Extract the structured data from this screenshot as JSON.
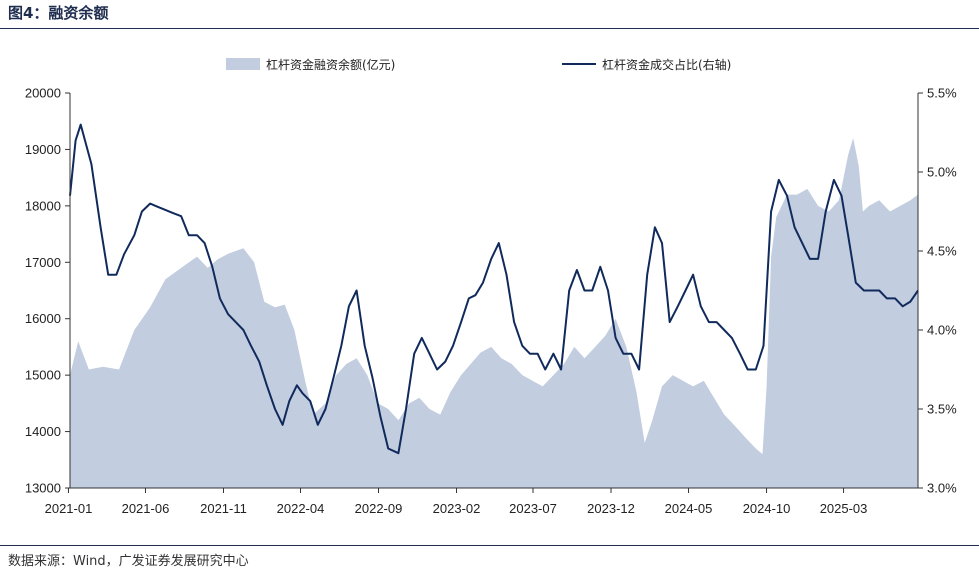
{
  "header": {
    "title": "图4：融资余额"
  },
  "footer": {
    "source": "数据来源：Wind，广发证券发展研究中心"
  },
  "colors": {
    "area": "#c2cde0",
    "line": "#102a5c",
    "axis": "#333333"
  },
  "chart_data": {
    "type": "area",
    "title": "图4：融资余额",
    "legend": {
      "placement": "top",
      "items": [
        "杠杆资金融资余额(亿元)",
        "杠杆资金成交占比(右轴)"
      ]
    },
    "x_ticks": [
      "2021-01",
      "2021-06",
      "2021-11",
      "2022-04",
      "2022-09",
      "2023-02",
      "2023-07",
      "2023-12",
      "2024-05",
      "2024-10",
      "2025-03"
    ],
    "y_left": {
      "range": [
        13000,
        20000
      ],
      "ticks": [
        "13000",
        "14000",
        "15000",
        "16000",
        "17000",
        "18000",
        "19000",
        "20000"
      ]
    },
    "y_right": {
      "range": [
        0.03,
        0.055
      ],
      "ticks": [
        "3.0%",
        "3.5%",
        "4.0%",
        "4.5%",
        "5.0%",
        "5.5%"
      ]
    },
    "grid": false,
    "series": [
      {
        "name": "杠杆资金融资余额(亿元)",
        "kind": "area",
        "axis": "left",
        "x": [
          "2021-01-04",
          "2021-01-20",
          "2021-02-10",
          "2021-03-10",
          "2021-04-10",
          "2021-05-10",
          "2021-06-10",
          "2021-07-10",
          "2021-08-10",
          "2021-09-10",
          "2021-10-01",
          "2021-10-20",
          "2021-11-10",
          "2021-12-10",
          "2021-12-31",
          "2022-01-20",
          "2022-02-10",
          "2022-03-01",
          "2022-03-20",
          "2022-04-10",
          "2022-04-26",
          "2022-05-20",
          "2022-06-10",
          "2022-06-30",
          "2022-07-20",
          "2022-08-10",
          "2022-08-31",
          "2022-09-20",
          "2022-10-10",
          "2022-10-31",
          "2022-11-20",
          "2022-12-10",
          "2022-12-31",
          "2023-01-20",
          "2023-02-10",
          "2023-03-01",
          "2023-03-20",
          "2023-04-10",
          "2023-04-30",
          "2023-05-20",
          "2023-06-10",
          "2023-06-30",
          "2023-07-20",
          "2023-08-10",
          "2023-08-31",
          "2023-09-20",
          "2023-10-10",
          "2023-10-31",
          "2023-11-20",
          "2023-12-10",
          "2023-12-31",
          "2024-01-20",
          "2024-02-05",
          "2024-02-20",
          "2024-03-10",
          "2024-03-31",
          "2024-04-20",
          "2024-05-10",
          "2024-05-31",
          "2024-06-20",
          "2024-07-10",
          "2024-07-31",
          "2024-08-20",
          "2024-09-10",
          "2024-09-23",
          "2024-10-01",
          "2024-10-10",
          "2024-10-20",
          "2024-11-10",
          "2024-11-30",
          "2024-12-20",
          "2025-01-10",
          "2025-01-31",
          "2025-02-20",
          "2025-03-10",
          "2025-03-20",
          "2025-03-31",
          "2025-04-08",
          "2025-04-20",
          "2025-05-10",
          "2025-05-31",
          "2025-06-20",
          "2025-07-10",
          "2025-07-25"
        ],
        "values": [
          15000,
          15600,
          15100,
          15150,
          15100,
          15800,
          16200,
          16700,
          16900,
          17100,
          16900,
          17050,
          17150,
          17250,
          17000,
          16300,
          16200,
          16250,
          15800,
          14900,
          14300,
          14500,
          15000,
          15200,
          15300,
          15000,
          14500,
          14400,
          14200,
          14500,
          14600,
          14400,
          14300,
          14700,
          15000,
          15200,
          15400,
          15500,
          15300,
          15200,
          15000,
          14900,
          14800,
          15000,
          15200,
          15500,
          15300,
          15500,
          15700,
          16000,
          15500,
          14700,
          13800,
          14200,
          14800,
          15000,
          14900,
          14800,
          14900,
          14600,
          14300,
          14100,
          13900,
          13700,
          13600,
          14800,
          17100,
          17800,
          18200,
          18200,
          18300,
          18000,
          17900,
          18100,
          18900,
          19200,
          18700,
          17900,
          18000,
          18100,
          17900,
          18000,
          18100,
          18200
        ]
      },
      {
        "name": "杠杆资金成交占比(右轴)",
        "kind": "line",
        "axis": "right",
        "x": [
          "2021-01-04",
          "2021-01-15",
          "2021-01-25",
          "2021-02-15",
          "2021-03-05",
          "2021-03-20",
          "2021-04-05",
          "2021-04-20",
          "2021-05-10",
          "2021-05-25",
          "2021-06-10",
          "2021-06-25",
          "2021-07-10",
          "2021-07-25",
          "2021-08-10",
          "2021-08-25",
          "2021-09-10",
          "2021-09-25",
          "2021-10-10",
          "2021-10-25",
          "2021-11-10",
          "2021-11-25",
          "2021-12-10",
          "2021-12-25",
          "2022-01-10",
          "2022-01-25",
          "2022-02-10",
          "2022-02-25",
          "2022-03-10",
          "2022-03-25",
          "2022-04-05",
          "2022-04-20",
          "2022-05-05",
          "2022-05-20",
          "2022-06-05",
          "2022-06-20",
          "2022-07-05",
          "2022-07-20",
          "2022-08-05",
          "2022-08-20",
          "2022-09-05",
          "2022-09-20",
          "2022-10-10",
          "2022-10-25",
          "2022-11-10",
          "2022-11-25",
          "2022-12-10",
          "2022-12-25",
          "2023-01-10",
          "2023-01-25",
          "2023-02-10",
          "2023-02-25",
          "2023-03-10",
          "2023-03-25",
          "2023-04-10",
          "2023-04-25",
          "2023-05-10",
          "2023-05-25",
          "2023-06-10",
          "2023-06-25",
          "2023-07-10",
          "2023-07-25",
          "2023-08-10",
          "2023-08-25",
          "2023-09-10",
          "2023-09-25",
          "2023-10-10",
          "2023-10-25",
          "2023-11-10",
          "2023-11-25",
          "2023-12-10",
          "2023-12-25",
          "2024-01-10",
          "2024-01-25",
          "2024-02-10",
          "2024-02-25",
          "2024-03-10",
          "2024-03-25",
          "2024-04-10",
          "2024-04-25",
          "2024-05-10",
          "2024-05-25",
          "2024-06-10",
          "2024-06-25",
          "2024-07-10",
          "2024-07-25",
          "2024-08-10",
          "2024-08-25",
          "2024-09-10",
          "2024-09-25",
          "2024-10-10",
          "2024-10-25",
          "2024-11-10",
          "2024-11-25",
          "2024-12-10",
          "2024-12-25",
          "2025-01-10",
          "2025-01-25",
          "2025-02-10",
          "2025-02-25",
          "2025-03-10",
          "2025-03-25",
          "2025-04-10",
          "2025-04-25",
          "2025-05-10",
          "2025-05-25",
          "2025-06-10",
          "2025-06-25",
          "2025-07-10",
          "2025-07-25"
        ],
        "values": [
          0.0485,
          0.052,
          0.053,
          0.0505,
          0.0465,
          0.0435,
          0.0435,
          0.0448,
          0.046,
          0.0475,
          0.048,
          0.0478,
          0.0476,
          0.0474,
          0.0472,
          0.046,
          0.046,
          0.0455,
          0.044,
          0.042,
          0.041,
          0.0405,
          0.04,
          0.039,
          0.038,
          0.0365,
          0.035,
          0.034,
          0.0355,
          0.0365,
          0.036,
          0.0355,
          0.034,
          0.035,
          0.037,
          0.039,
          0.0415,
          0.0425,
          0.039,
          0.037,
          0.0345,
          0.0325,
          0.0322,
          0.035,
          0.0385,
          0.0395,
          0.0385,
          0.0375,
          0.038,
          0.039,
          0.0405,
          0.042,
          0.0422,
          0.043,
          0.0445,
          0.0455,
          0.0435,
          0.0405,
          0.039,
          0.0385,
          0.0385,
          0.0375,
          0.0385,
          0.0375,
          0.0425,
          0.0438,
          0.0425,
          0.0425,
          0.044,
          0.0425,
          0.0395,
          0.0385,
          0.0385,
          0.0375,
          0.0435,
          0.0465,
          0.0455,
          0.0405,
          0.0415,
          0.0425,
          0.0435,
          0.0415,
          0.0405,
          0.0405,
          0.04,
          0.0395,
          0.0385,
          0.0375,
          0.0375,
          0.039,
          0.0475,
          0.0495,
          0.0485,
          0.0465,
          0.0455,
          0.0445,
          0.0445,
          0.0475,
          0.0495,
          0.0485,
          0.046,
          0.043,
          0.0425,
          0.0425,
          0.0425,
          0.042,
          0.042,
          0.0415,
          0.0418,
          0.0425
        ]
      }
    ]
  }
}
